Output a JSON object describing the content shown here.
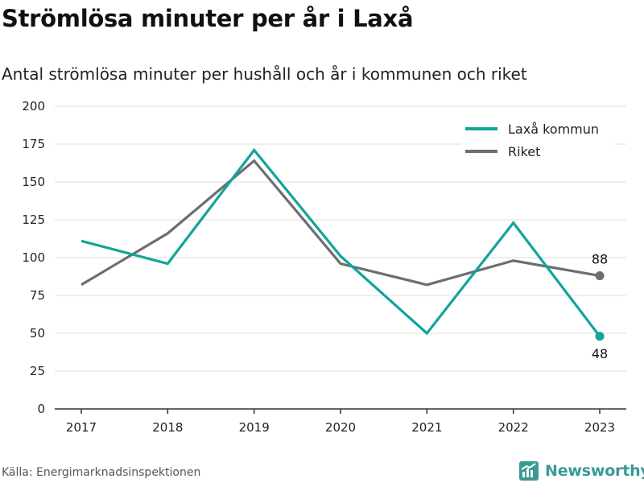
{
  "title": "Strömlösa minuter per år i Laxå",
  "subtitle": "Antal strömlösa minuter per hushåll och år i kommunen och riket",
  "source": "Källa: Energimarknadsinspektionen",
  "brand": {
    "name": "Newsworthy",
    "icon": "newsworthy-logo-icon",
    "color": "#3a9a95"
  },
  "chart_data": {
    "type": "line",
    "x": [
      2017,
      2018,
      2019,
      2020,
      2021,
      2022,
      2023
    ],
    "series": [
      {
        "name": "Laxå kommun",
        "color": "#11a59a",
        "values": [
          111,
          96,
          171,
          101,
          50,
          123,
          48
        ]
      },
      {
        "name": "Riket",
        "color": "#6d6d72",
        "values": [
          82,
          116,
          164,
          96,
          82,
          98,
          88
        ]
      }
    ],
    "ylim": [
      0,
      200
    ],
    "yticks": [
      0,
      25,
      50,
      75,
      100,
      125,
      150,
      175,
      200
    ],
    "grid": true,
    "legend": "top-right",
    "end_labels": [
      {
        "series": "Laxå kommun",
        "x": 2023,
        "value": 48,
        "text": "48",
        "position": "below"
      },
      {
        "series": "Riket",
        "x": 2023,
        "value": 88,
        "text": "88",
        "position": "above"
      }
    ]
  }
}
